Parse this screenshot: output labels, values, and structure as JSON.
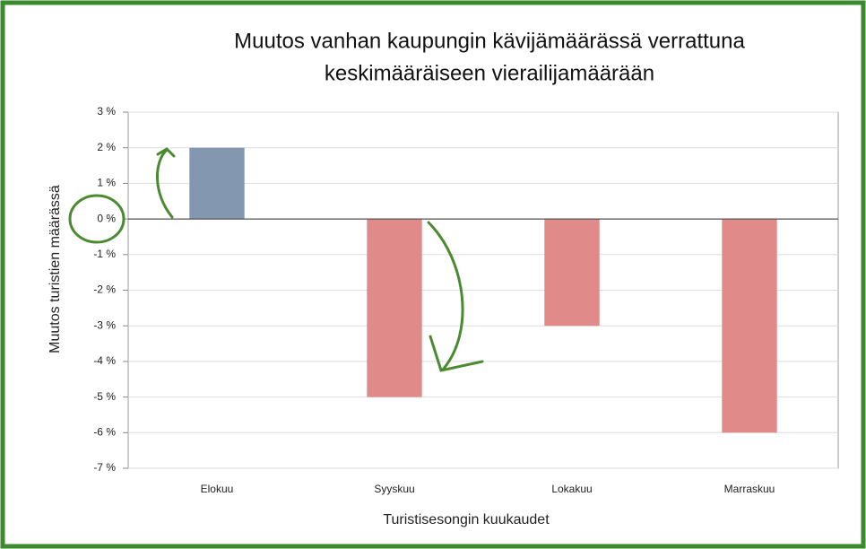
{
  "chart_data": {
    "type": "bar",
    "title": [
      "Muutos vanhan kaupungin kävijämäärässä verrattuna",
      "keskimääräiseen vierailijamäärään"
    ],
    "x_label": "Turistisesongin kuukaudet",
    "y_label": "Muutos turistien määrässä",
    "categories": [
      "Elokuu",
      "Syyskuu",
      "Lokakuu",
      "Marraskuu"
    ],
    "values": [
      2,
      -5,
      -3,
      -6
    ],
    "colors": [
      "#8497b0",
      "#e08a8a",
      "#e08a8a",
      "#e08a8a"
    ],
    "ylim": [
      -7,
      3
    ],
    "yticks": [
      {
        "value": 3,
        "label": "3 %"
      },
      {
        "value": 2,
        "label": "2 %"
      },
      {
        "value": 1,
        "label": "1 %"
      },
      {
        "value": 0,
        "label": "0 %"
      },
      {
        "value": -1,
        "label": "-1 %"
      },
      {
        "value": -2,
        "label": "-2 %"
      },
      {
        "value": -3,
        "label": "-3 %"
      },
      {
        "value": -4,
        "label": "-4 %"
      },
      {
        "value": -5,
        "label": "-5 %"
      },
      {
        "value": -6,
        "label": "-6 %"
      },
      {
        "value": -7,
        "label": "-7 %"
      }
    ],
    "grid": true
  }
}
